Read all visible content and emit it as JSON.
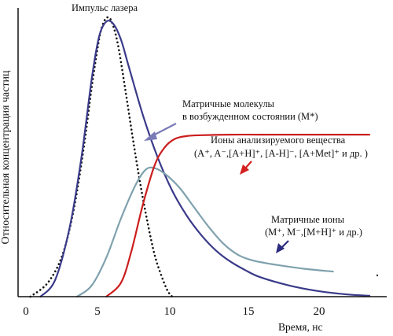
{
  "chart_data": {
    "type": "line",
    "title": "",
    "xlabel": "Время, нс",
    "ylabel": "Относительная концентрация частиц",
    "xlim": [
      0,
      24
    ],
    "ylim": [
      0,
      1
    ],
    "xticks": [
      "0",
      "5",
      "10",
      "15",
      "20"
    ],
    "grid": false,
    "legend": "none",
    "series": [
      {
        "key": "laser",
        "color": "#111111",
        "style": "dotted",
        "x": [
          0.3,
          1.5,
          2.5,
          3.3,
          4.0,
          4.5,
          5.0,
          5.3,
          5.6,
          5.9,
          6.3,
          6.8,
          7.3,
          7.8,
          8.3,
          8.8,
          9.3,
          9.7,
          10.0
        ],
        "y": [
          0.0,
          0.05,
          0.15,
          0.32,
          0.55,
          0.75,
          0.92,
          0.98,
          1.0,
          0.98,
          0.9,
          0.74,
          0.57,
          0.41,
          0.27,
          0.15,
          0.07,
          0.02,
          0.0
        ]
      },
      {
        "key": "excited",
        "color": "#3a3a8a",
        "style": "solid",
        "x": [
          1.0,
          2.0,
          3.0,
          3.8,
          4.5,
          5.0,
          5.5,
          6.0,
          6.5,
          7.0,
          8.0,
          9.0,
          10.0,
          11.0,
          12.0,
          13.0,
          14.0,
          15.0,
          16.0,
          18.0,
          20.0,
          22.0,
          23.5
        ],
        "y": [
          0.0,
          0.06,
          0.25,
          0.5,
          0.78,
          0.93,
          0.985,
          0.975,
          0.92,
          0.83,
          0.65,
          0.5,
          0.38,
          0.29,
          0.22,
          0.165,
          0.125,
          0.095,
          0.07,
          0.04,
          0.02,
          0.008,
          0.003
        ]
      },
      {
        "key": "matrix_ions",
        "color": "#7fa1ad",
        "style": "solid",
        "x": [
          3.5,
          4.5,
          5.5,
          6.5,
          7.5,
          8.2,
          8.8,
          9.5,
          10.5,
          11.5,
          12.5,
          13.5,
          14.5,
          15.5,
          17.0,
          19.0,
          21.0
        ],
        "y": [
          0.0,
          0.04,
          0.14,
          0.28,
          0.4,
          0.455,
          0.46,
          0.44,
          0.39,
          0.32,
          0.25,
          0.19,
          0.15,
          0.13,
          0.115,
          0.1,
          0.09
        ]
      },
      {
        "key": "analyte_ions",
        "color": "#cc1e1e",
        "style": "solid",
        "x": [
          5.5,
          6.5,
          7.2,
          8.0,
          8.8,
          9.5,
          10.2,
          11.0,
          12.0,
          14.0,
          16.0,
          18.0,
          20.0,
          22.0,
          23.5
        ],
        "y": [
          0.0,
          0.05,
          0.16,
          0.33,
          0.47,
          0.535,
          0.565,
          0.575,
          0.578,
          0.58,
          0.58,
          0.58,
          0.58,
          0.58,
          0.58
        ]
      }
    ],
    "annotations": {
      "laser": "Импульс лазера",
      "excited_line1": "Матричные молекулы",
      "excited_line2": "в возбужденном состоянии (M*)",
      "analyte_line1": "Ионы анализируемого вещества",
      "analyte_line2": "(A⁺, A⁻,[A+H]⁺, [A-H]⁻, [A+Met]⁺ и др. )",
      "matrix_line1": "Матричные ионы",
      "matrix_line2": "(M⁺, M⁻,[M+H]⁺ и др.)"
    },
    "arrow_colors": {
      "excited": "#7a7ab8",
      "analyte": "#d42020",
      "matrix": "#2b2b80"
    }
  }
}
